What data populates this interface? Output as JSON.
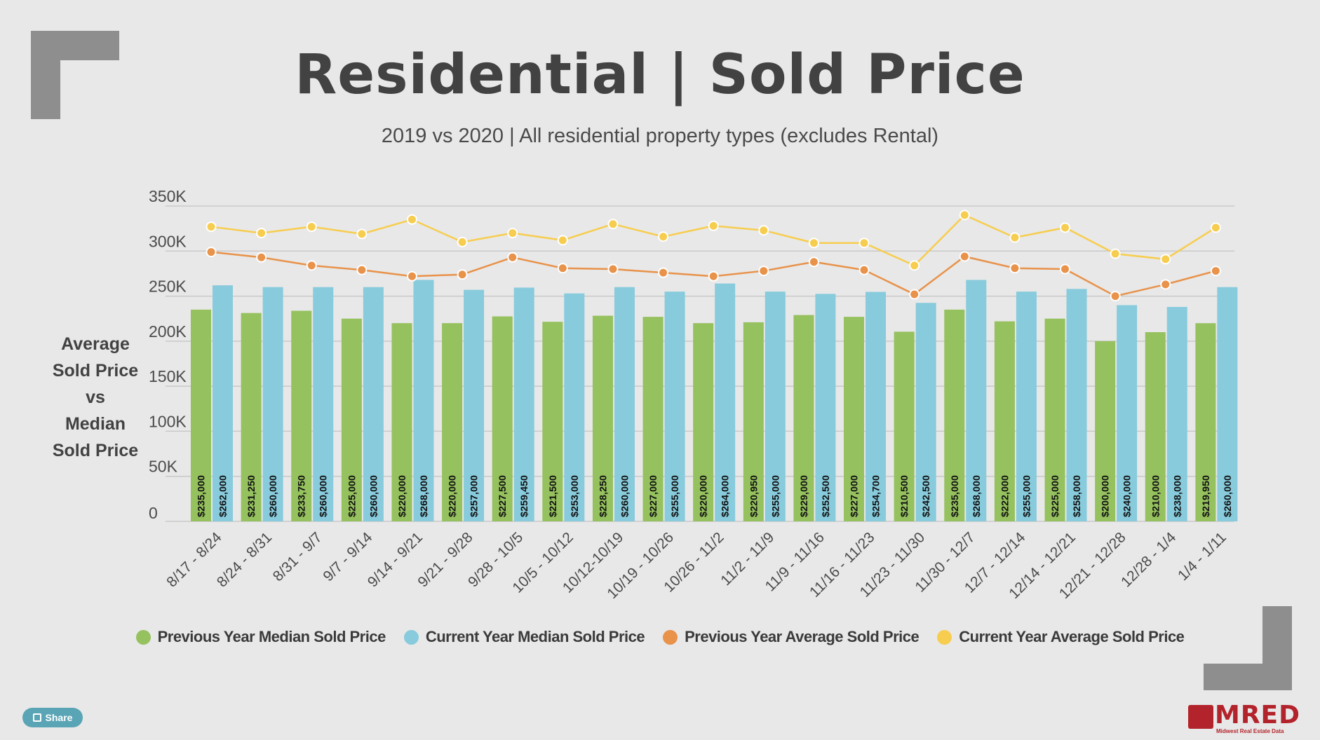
{
  "title": "Residential | Sold Price",
  "subtitle": "2019 vs 2020 | All residential property types (excludes Rental)",
  "ylabel_lines": [
    "Average",
    "Sold Price",
    "vs",
    "Median",
    "Sold Price"
  ],
  "share_label": "Share",
  "logo": {
    "text": "MRED",
    "subtext": "Midwest Real Estate Data"
  },
  "colors": {
    "prev_median": "#95c15e",
    "curr_median": "#88cbdc",
    "prev_avg": "#e8924a",
    "curr_avg": "#f7cd4f",
    "grid": "#c9c9c9",
    "text": "#424242"
  },
  "chart_data": {
    "type": "bar",
    "ylim": [
      0,
      350000
    ],
    "yticks": [
      {
        "value": 0,
        "label": "0"
      },
      {
        "value": 50000,
        "label": "50K"
      },
      {
        "value": 100000,
        "label": "100K"
      },
      {
        "value": 150000,
        "label": "150K"
      },
      {
        "value": 200000,
        "label": "200K"
      },
      {
        "value": 250000,
        "label": "250K"
      },
      {
        "value": 300000,
        "label": "300K"
      },
      {
        "value": 350000,
        "label": "350K"
      }
    ],
    "grid": true,
    "legend_position": "bottom",
    "categories": [
      "8/17 - 8/24",
      "8/24 - 8/31",
      "8/31 - 9/7",
      "9/7 - 9/14",
      "9/14 - 9/21",
      "9/21 - 9/28",
      "9/28 - 10/5",
      "10/5 - 10/12",
      "10/12-10/19",
      "10/19 - 10/26",
      "10/26 - 11/2",
      "11/2 - 11/9",
      "11/9 - 11/16",
      "11/16 - 11/23",
      "11/23 - 11/30",
      "11/30 - 12/7",
      "12/7 - 12/14",
      "12/14 - 12/21",
      "12/21 - 12/28",
      "12/28 - 1/4",
      "1/4 - 1/11"
    ],
    "series": [
      {
        "name": "Previous Year Median Sold Price",
        "type": "bar",
        "color": "#95c15e",
        "values": [
          235000,
          231250,
          233750,
          225000,
          220000,
          220000,
          227500,
          221500,
          228250,
          227000,
          220000,
          220950,
          229000,
          227000,
          210500,
          235000,
          222000,
          225000,
          200000,
          210000,
          219950
        ],
        "labels": [
          "$235,000",
          "$231,250",
          "$233,750",
          "$225,000",
          "$220,000",
          "$220,000",
          "$227,500",
          "$221,500",
          "$228,250",
          "$227,000",
          "$220,000",
          "$220,950",
          "$229,000",
          "$227,000",
          "$210,500",
          "$235,000",
          "$222,000",
          "$225,000",
          "$200,000",
          "$210,000",
          "$219,950"
        ]
      },
      {
        "name": "Current Year Median Sold Price",
        "type": "bar",
        "color": "#88cbdc",
        "values": [
          262000,
          260000,
          260000,
          260000,
          268000,
          257000,
          259450,
          253000,
          260000,
          255000,
          264000,
          255000,
          252500,
          254700,
          242500,
          268000,
          255000,
          258000,
          240000,
          238000,
          260000
        ],
        "labels": [
          "$262,000",
          "$260,000",
          "$260,000",
          "$260,000",
          "$268,000",
          "$257,000",
          "$259,450",
          "$253,000",
          "$260,000",
          "$255,000",
          "$264,000",
          "$255,000",
          "$252,500",
          "$254,700",
          "$242,500",
          "$268,000",
          "$255,000",
          "$258,000",
          "$240,000",
          "$238,000",
          "$260,000"
        ]
      },
      {
        "name": "Previous Year Average Sold Price",
        "type": "line",
        "color": "#e8924a",
        "values": [
          299000,
          293000,
          284000,
          279000,
          272000,
          274000,
          293000,
          281000,
          280000,
          276000,
          272000,
          278000,
          288000,
          279000,
          252000,
          294000,
          281000,
          280000,
          250000,
          263000,
          278000
        ]
      },
      {
        "name": "Current Year Average Sold Price",
        "type": "line",
        "color": "#f7cd4f",
        "values": [
          327000,
          320000,
          327000,
          319000,
          335000,
          310000,
          320000,
          312000,
          330000,
          316000,
          328000,
          323000,
          309000,
          309000,
          284000,
          340000,
          315000,
          326000,
          297000,
          291000,
          326000
        ]
      }
    ]
  }
}
